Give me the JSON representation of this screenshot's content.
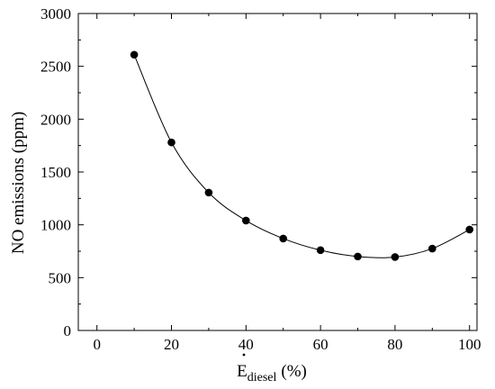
{
  "chart_data": {
    "type": "scatter",
    "xlabel": {
      "base": "E",
      "sub": "diesel",
      "unit": "(%)"
    },
    "ylabel": "NO emissions (ppm)",
    "xlim": [
      -5,
      102
    ],
    "ylim": [
      0,
      3000
    ],
    "xticks": [
      "0",
      "20",
      "40",
      "60",
      "80",
      "100"
    ],
    "yticks": [
      "0",
      "500",
      "1000",
      "1500",
      "2000",
      "2500",
      "3000"
    ],
    "grid": false,
    "legend": "none",
    "series": [
      {
        "style": "markers-with-smooth-fit",
        "color": "#000000",
        "x": [
          10,
          20,
          30,
          40,
          50,
          60,
          70,
          80,
          90,
          100
        ],
        "y": [
          2610,
          1780,
          1305,
          1040,
          870,
          760,
          700,
          695,
          775,
          955
        ]
      }
    ]
  }
}
